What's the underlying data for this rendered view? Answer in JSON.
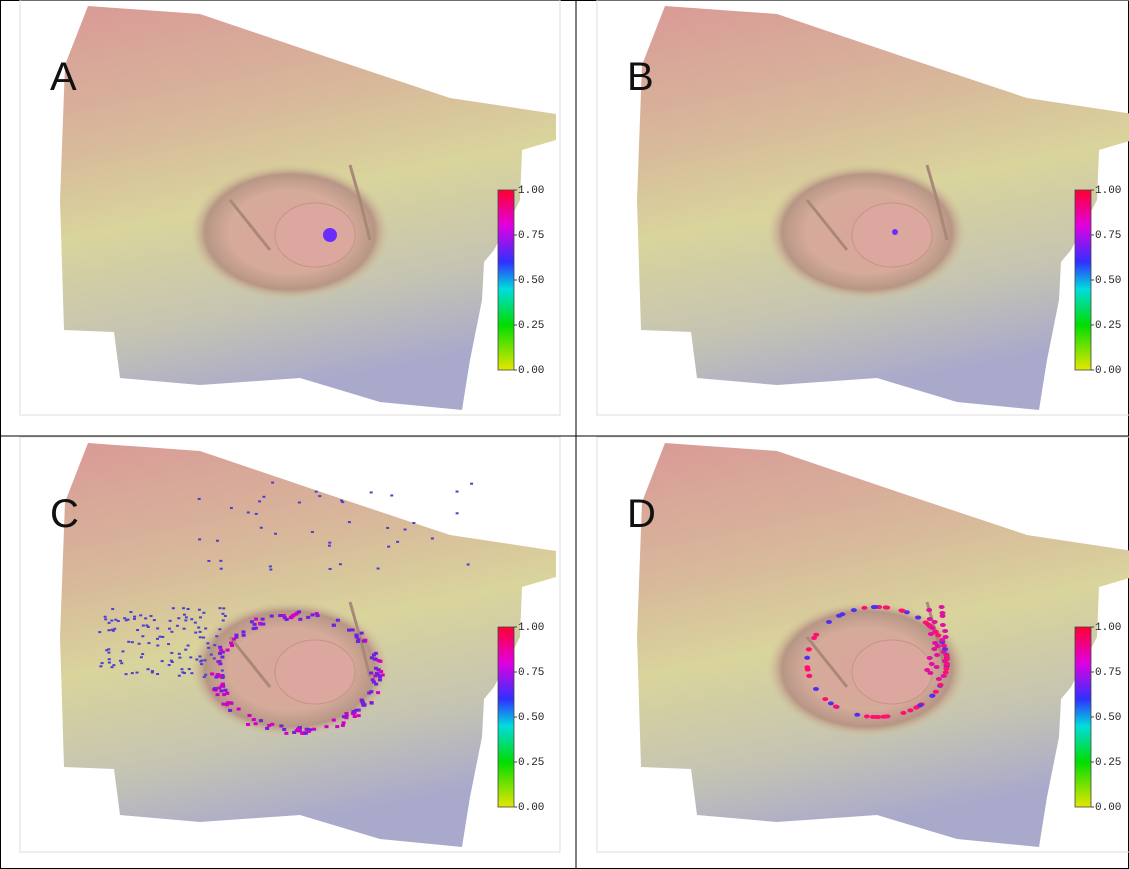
{
  "panels": [
    {
      "label": "A",
      "colorbar_ticks": [
        "1.00",
        "0.75",
        "0.50",
        "0.25",
        "0.00"
      ]
    },
    {
      "label": "B",
      "colorbar_ticks": [
        "1.00",
        "0.75",
        "0.50",
        "0.25",
        "0.00"
      ]
    },
    {
      "label": "C",
      "colorbar_ticks": [
        "1.00",
        "0.75",
        "0.50",
        "0.25",
        "0.00"
      ]
    },
    {
      "label": "D",
      "colorbar_ticks": [
        "1.00",
        "0.75",
        "0.50",
        "0.25",
        "0.00"
      ]
    }
  ]
}
